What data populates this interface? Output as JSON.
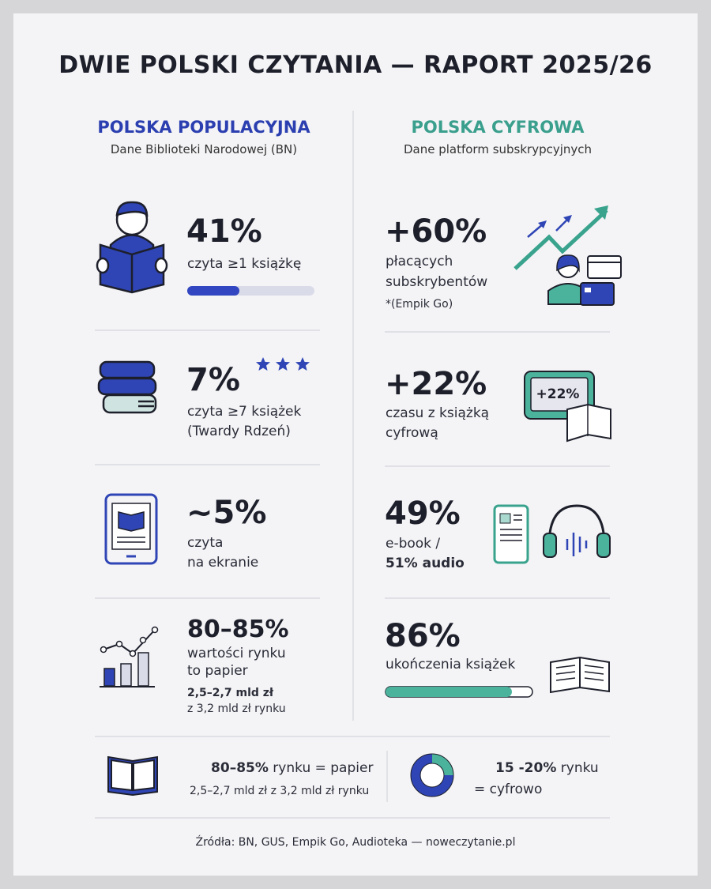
{
  "title": "DWIE POLSKI CZYTANIA — RAPORT 2025/26",
  "left": {
    "heading": "POLSKA POPULACYJNA",
    "subtitle": "Dane Biblioteki Narodowej (BN)",
    "items": [
      {
        "stat": {
          "value": 41,
          "label": "41%"
        },
        "lines": [
          "czyta ≥1 książkę"
        ]
      },
      {
        "stat": "7%",
        "lines": [
          "czyta ≥7 książek",
          "(Twardy Rdzeń)"
        ]
      },
      {
        "stat": "~5%",
        "lines": [
          "czyta",
          "na ekranie"
        ]
      },
      {
        "stat": "80–85%",
        "lines": [
          "wartości rynku",
          "to papier"
        ],
        "detail": [
          "2,5–2,7 mld zł",
          "z 3,2 mld zł rynku"
        ]
      }
    ]
  },
  "right": {
    "heading": "POLSKA CYFROWA",
    "subtitle": "Dane platform subskrypcyjnych",
    "items": [
      {
        "stat": "+60%",
        "lines": [
          "płacących",
          "subskrybentów"
        ],
        "note": "*(Empik Go)"
      },
      {
        "stat": "+22%",
        "lines": [
          "czasu z książką",
          "cyfrową"
        ],
        "icon_label": "+22%"
      },
      {
        "stat": "49%",
        "lines": [
          "e-book /"
        ],
        "bold_line": "51% audio"
      },
      {
        "stat": {
          "value": 86,
          "label": "86%"
        },
        "lines": [
          "ukończenia książek"
        ]
      }
    ]
  },
  "summary": [
    {
      "bold": "80–85%",
      "text": " rynku = papier",
      "detail": "2,5–2,7 mld zł z 3,2 mld zł rynku"
    },
    {
      "bold": "15 -20%",
      "text": " rynku",
      "detail": "= cyfrowo"
    }
  ],
  "footer": "Źródła: BN, GUS, Empik Go, Audioteka — noweczytanie.pl"
}
